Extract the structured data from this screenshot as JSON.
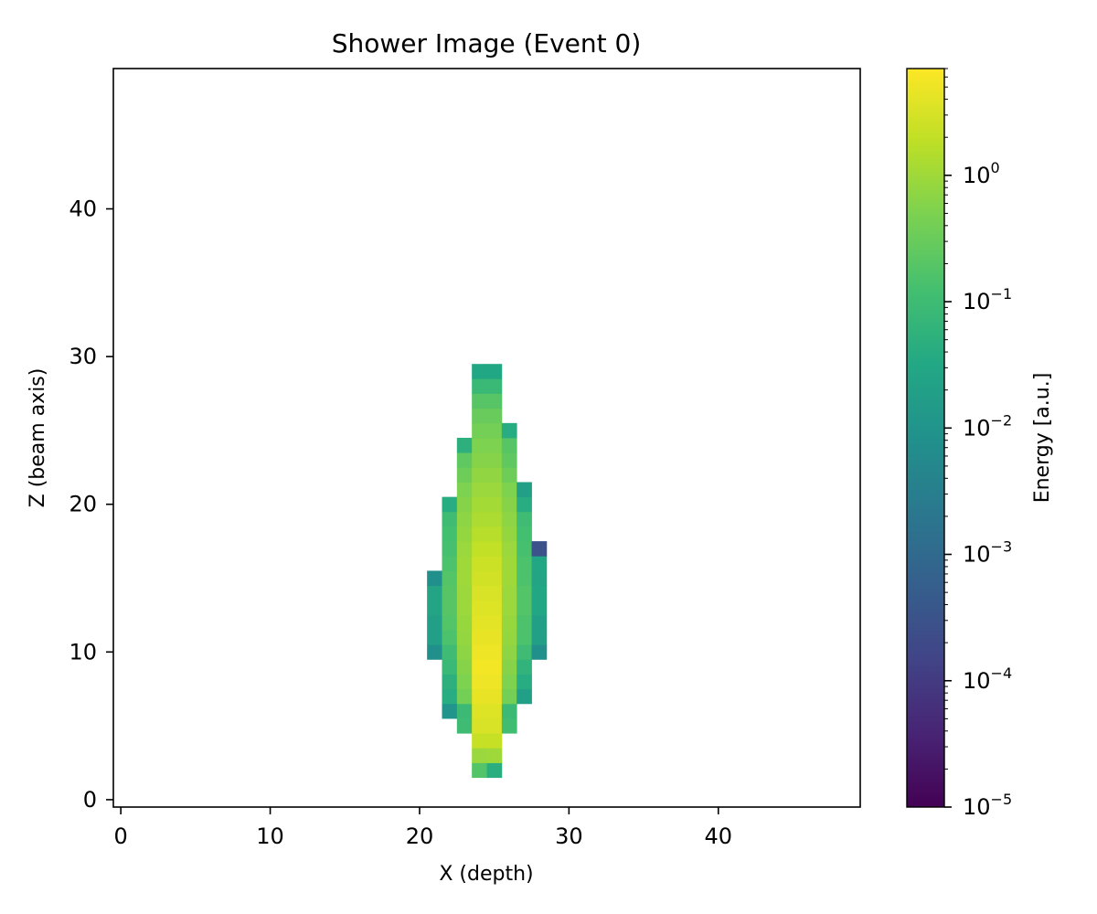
{
  "chart_data": {
    "type": "heatmap",
    "title": "Shower Image (Event 0)",
    "xlabel": "X (depth)",
    "ylabel": "Z (beam axis)",
    "xlim": [
      -0.5,
      49.5
    ],
    "ylim": [
      -0.5,
      49.5
    ],
    "x_ticks": [
      0,
      10,
      20,
      30,
      40
    ],
    "y_ticks": [
      0,
      10,
      20,
      30,
      40
    ],
    "grid": false,
    "origin": "lower",
    "colorbar": {
      "label": "Energy [a.u.]",
      "scale": "log",
      "min": 1e-05,
      "max": 7,
      "colormap": "viridis",
      "ticks": [
        {
          "value": 1e-05,
          "base": "10",
          "exp": "−5"
        },
        {
          "value": 0.0001,
          "base": "10",
          "exp": "−4"
        },
        {
          "value": 0.001,
          "base": "10",
          "exp": "−3"
        },
        {
          "value": 0.01,
          "base": "10",
          "exp": "−2"
        },
        {
          "value": 0.1,
          "base": "10",
          "exp": "−1"
        },
        {
          "value": 1,
          "base": "10",
          "exp": "0"
        }
      ]
    },
    "cells": {
      "note_units": "Energy [a.u.]; rows given as z: [x_start, [values...]]",
      "rows": [
        {
          "z": 2,
          "x0": 24,
          "values": [
            0.18,
            0.045
          ]
        },
        {
          "z": 3,
          "x0": 24,
          "values": [
            0.9,
            1.0
          ]
        },
        {
          "z": 4,
          "x0": 24,
          "values": [
            2.2,
            2.2
          ]
        },
        {
          "z": 5,
          "x0": 23,
          "values": [
            0.1,
            3.2,
            3.2,
            0.11
          ]
        },
        {
          "z": 6,
          "x0": 22,
          "values": [
            0.01,
            0.09,
            3.6,
            3.6,
            0.09
          ]
        },
        {
          "z": 7,
          "x0": 22,
          "values": [
            0.04,
            0.4,
            4.5,
            4.5,
            0.4,
            0.02
          ]
        },
        {
          "z": 8,
          "x0": 22,
          "values": [
            0.05,
            0.5,
            5.0,
            5.0,
            0.5,
            0.04
          ]
        },
        {
          "z": 9,
          "x0": 22,
          "values": [
            0.08,
            0.6,
            5.5,
            5.5,
            0.6,
            0.06
          ]
        },
        {
          "z": 10,
          "x0": 21,
          "values": [
            0.008,
            0.1,
            0.7,
            5.0,
            5.0,
            0.7,
            0.1,
            0.008
          ]
        },
        {
          "z": 11,
          "x0": 21,
          "values": [
            0.02,
            0.15,
            0.8,
            4.5,
            4.5,
            0.8,
            0.15,
            0.02
          ]
        },
        {
          "z": 12,
          "x0": 21,
          "values": [
            0.02,
            0.18,
            0.85,
            4.0,
            4.0,
            0.85,
            0.15,
            0.02
          ]
        },
        {
          "z": 13,
          "x0": 21,
          "values": [
            0.025,
            0.2,
            0.9,
            3.6,
            3.6,
            0.9,
            0.18,
            0.03
          ]
        },
        {
          "z": 14,
          "x0": 21,
          "values": [
            0.025,
            0.2,
            0.9,
            3.2,
            3.2,
            0.9,
            0.18,
            0.03
          ]
        },
        {
          "z": 15,
          "x0": 21,
          "values": [
            0.008,
            0.18,
            1.0,
            2.8,
            2.8,
            1.0,
            0.15,
            0.025
          ]
        },
        {
          "z": 16,
          "x0": 22,
          "values": [
            0.15,
            1.0,
            2.4,
            2.4,
            1.0,
            0.15,
            0.03
          ]
        },
        {
          "z": 17,
          "x0": 22,
          "values": [
            0.13,
            0.9,
            2.0,
            2.0,
            0.9,
            0.13,
            0.0003
          ]
        },
        {
          "z": 18,
          "x0": 22,
          "values": [
            0.12,
            0.8,
            1.6,
            1.6,
            0.8,
            0.12
          ]
        },
        {
          "z": 19,
          "x0": 22,
          "values": [
            0.1,
            0.7,
            1.3,
            1.3,
            0.7,
            0.1
          ]
        },
        {
          "z": 20,
          "x0": 22,
          "values": [
            0.04,
            0.6,
            1.1,
            1.1,
            0.6,
            0.04
          ]
        },
        {
          "z": 21,
          "x0": 23,
          "values": [
            0.5,
            0.9,
            0.9,
            0.5,
            0.02
          ]
        },
        {
          "z": 22,
          "x0": 23,
          "values": [
            0.35,
            0.75,
            0.75,
            0.35
          ]
        },
        {
          "z": 23,
          "x0": 23,
          "values": [
            0.25,
            0.6,
            0.6,
            0.25
          ]
        },
        {
          "z": 24,
          "x0": 23,
          "values": [
            0.05,
            0.5,
            0.5,
            0.2
          ]
        },
        {
          "z": 25,
          "x0": 24,
          "values": [
            0.4,
            0.4,
            0.04
          ]
        },
        {
          "z": 26,
          "x0": 24,
          "values": [
            0.3,
            0.3
          ]
        },
        {
          "z": 27,
          "x0": 24,
          "values": [
            0.2,
            0.2
          ]
        },
        {
          "z": 28,
          "x0": 24,
          "values": [
            0.08,
            0.08
          ]
        },
        {
          "z": 29,
          "x0": 24,
          "values": [
            0.03,
            0.03
          ]
        }
      ]
    }
  }
}
